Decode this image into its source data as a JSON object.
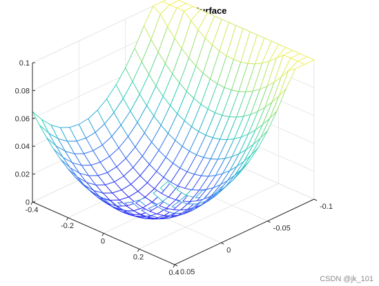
{
  "watermark": "CSDN @jk_101",
  "chart_data": {
    "type": "surface-mesh",
    "title": "Actual Surface",
    "xlabel": "",
    "ylabel": "",
    "zlabel": "",
    "function": "z = x^2/4 + y^2 * 10",
    "x_range": [
      -0.4,
      0.4
    ],
    "y_range": [
      -0.1,
      0.05
    ],
    "z_range": [
      0,
      0.1
    ],
    "x_steps": 20,
    "y_steps": 15,
    "z_clip": 0.1,
    "grid": true,
    "colormap": [
      "#2b1cf5",
      "#3a7af0",
      "#2dd1c0",
      "#8fe07a",
      "#f3ef5a"
    ],
    "axis_color": "#262626",
    "grid_color": "#e6e6e6",
    "x_ticks": [
      {
        "value": -0.4,
        "label": "-0.4"
      },
      {
        "value": -0.2,
        "label": "-0.2"
      },
      {
        "value": 0,
        "label": "0"
      },
      {
        "value": 0.2,
        "label": "0.2"
      },
      {
        "value": 0.4,
        "label": "0.4"
      }
    ],
    "y_ticks": [
      {
        "value": -0.1,
        "label": "-0.1"
      },
      {
        "value": -0.05,
        "label": "-0.05"
      },
      {
        "value": 0,
        "label": "0"
      },
      {
        "value": 0.05,
        "label": "0.05"
      }
    ],
    "z_ticks": [
      {
        "value": 0,
        "label": "0"
      },
      {
        "value": 0.02,
        "label": "0.02"
      },
      {
        "value": 0.04,
        "label": "0.04"
      },
      {
        "value": 0.06,
        "label": "0.06"
      },
      {
        "value": 0.08,
        "label": "0.08"
      },
      {
        "value": 0.1,
        "label": "0.1"
      }
    ]
  }
}
